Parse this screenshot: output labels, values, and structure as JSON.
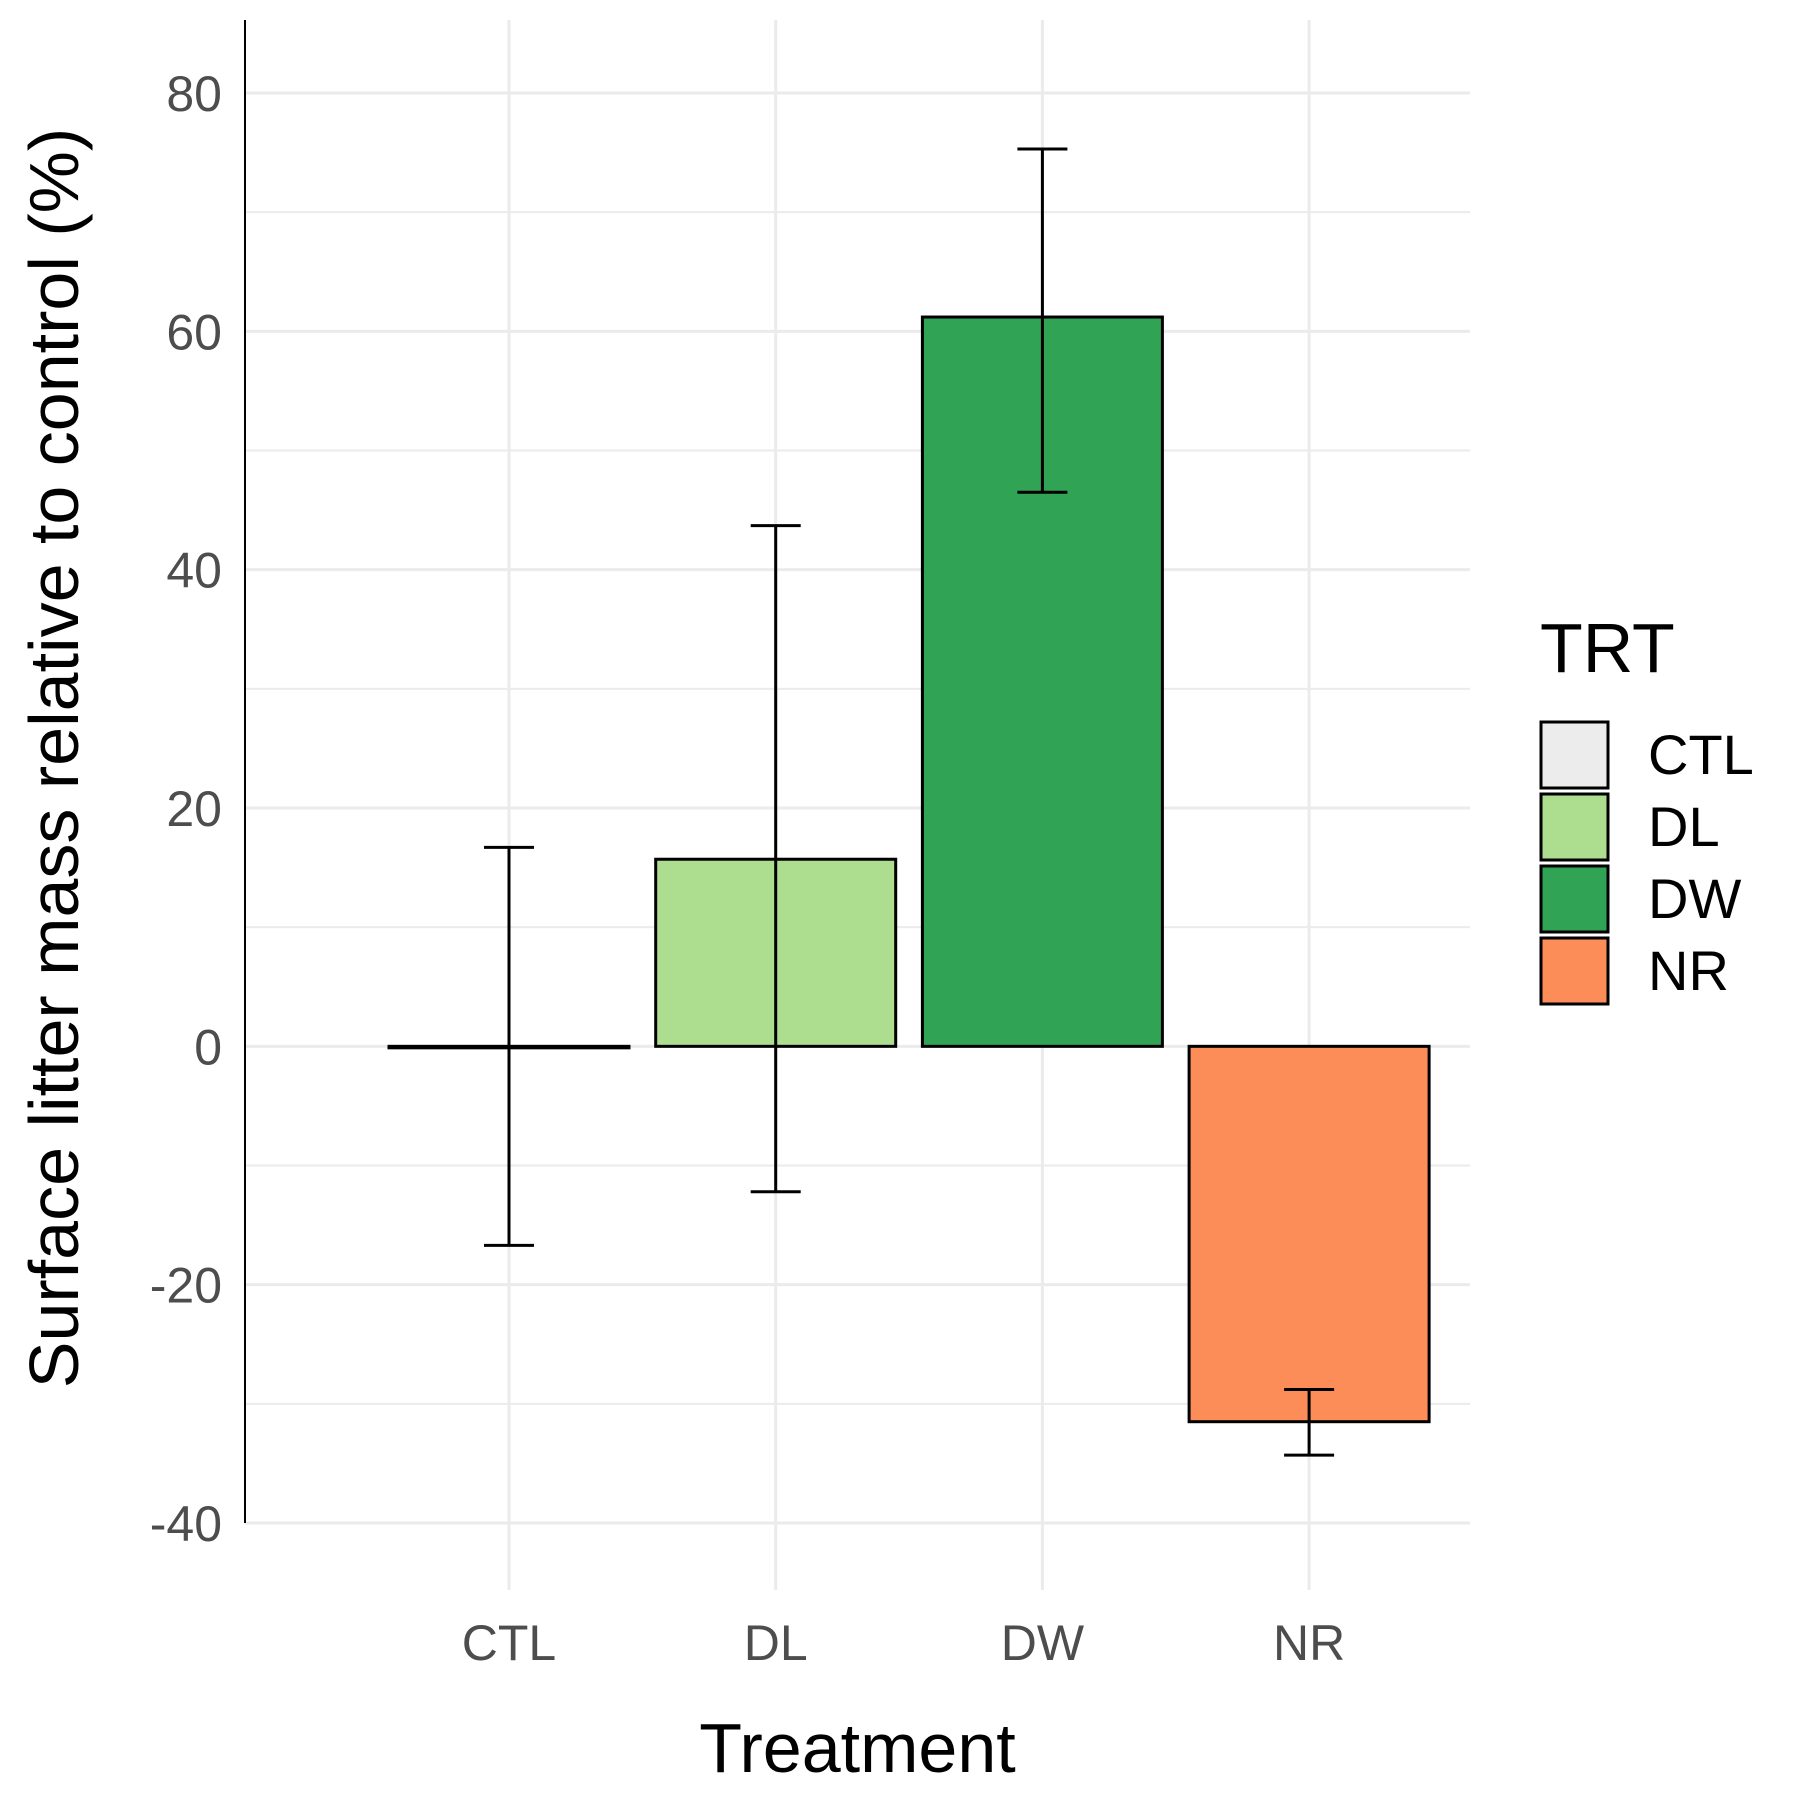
{
  "chart_data": {
    "type": "bar",
    "categories": [
      "CTL",
      "DL",
      "DW",
      "NR"
    ],
    "values": [
      0,
      15.7,
      61.2,
      -31.5
    ],
    "error_low": [
      -16.7,
      -12.2,
      46.5,
      -34.3
    ],
    "error_high": [
      16.7,
      43.7,
      75.3,
      -28.8
    ],
    "colors": [
      "#ececec",
      "#addd8e",
      "#31a354",
      "#fc8d59"
    ],
    "title": "",
    "xlabel": "Treatment",
    "ylabel": "Surface litter mass relative to control (%)",
    "ylim": [
      -40,
      80
    ],
    "yticks": [
      -40,
      -20,
      0,
      20,
      40,
      60,
      80
    ],
    "ytick_labels": [
      "-40",
      "-20",
      "0",
      "20",
      "40",
      "60",
      "80"
    ],
    "grid": true,
    "legend": {
      "title": "TRT",
      "placement": "right",
      "entries": [
        "CTL",
        "DL",
        "DW",
        "NR"
      ]
    }
  }
}
